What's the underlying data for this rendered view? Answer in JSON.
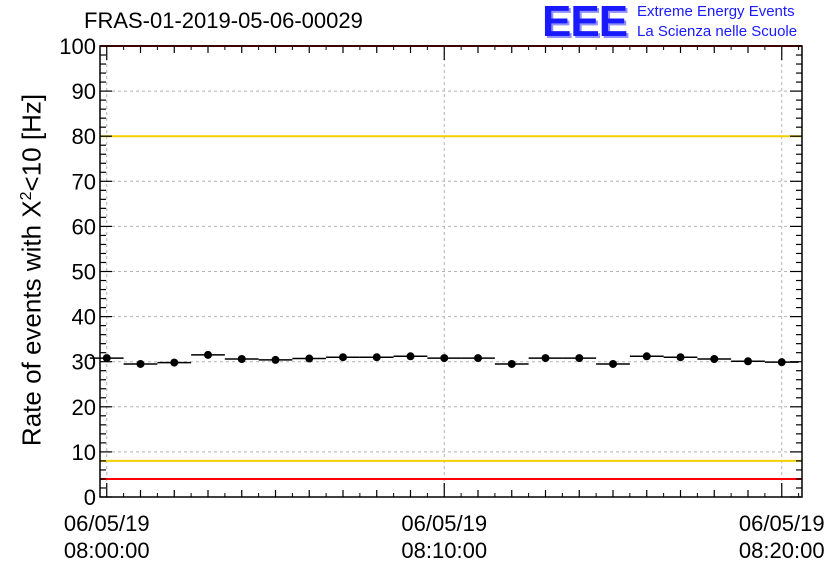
{
  "title": "FRAS-01-2019-05-06-00029",
  "logo": {
    "mark": "EEE",
    "line1": "Extreme Energy Events",
    "line2": "La Scienza nelle Scuole"
  },
  "chart_data": {
    "type": "scatter",
    "title": "FRAS-01-2019-05-06-00029",
    "ylabel_parts": [
      "Rate of events with X",
      "2",
      "<10 [Hz]"
    ],
    "ylim": [
      0,
      100
    ],
    "yticks": [
      "0",
      "10",
      "20",
      "30",
      "40",
      "50",
      "60",
      "70",
      "80",
      "90",
      "100"
    ],
    "xlim_minutes": [
      -0.2,
      20.6
    ],
    "xticks": [
      {
        "minute": 0,
        "date": "06/05/19",
        "time": "08:00:00"
      },
      {
        "minute": 10,
        "date": "06/05/19",
        "time": "08:10:00"
      },
      {
        "minute": 20,
        "date": "06/05/19",
        "time": "08:20:00"
      }
    ],
    "bin_width_minutes": 1,
    "x_minutes": [
      0,
      1,
      2,
      3,
      4,
      5,
      6,
      7,
      8,
      9,
      10,
      11,
      12,
      13,
      14,
      15,
      16,
      17,
      18,
      19,
      20
    ],
    "values": [
      30.8,
      29.5,
      29.8,
      31.5,
      30.6,
      30.4,
      30.7,
      31.0,
      31.0,
      31.2,
      30.8,
      30.8,
      29.5,
      30.8,
      30.8,
      29.5,
      31.2,
      31.0,
      30.6,
      30.1,
      29.9
    ],
    "reference_lines": [
      {
        "value": 100,
        "color": "#ff0000"
      },
      {
        "value": 80,
        "color": "#f0d000"
      },
      {
        "value": 8,
        "color": "#f0d000"
      },
      {
        "value": 4,
        "color": "#ff0000"
      }
    ],
    "grid": true,
    "marker_color": "#000000"
  }
}
